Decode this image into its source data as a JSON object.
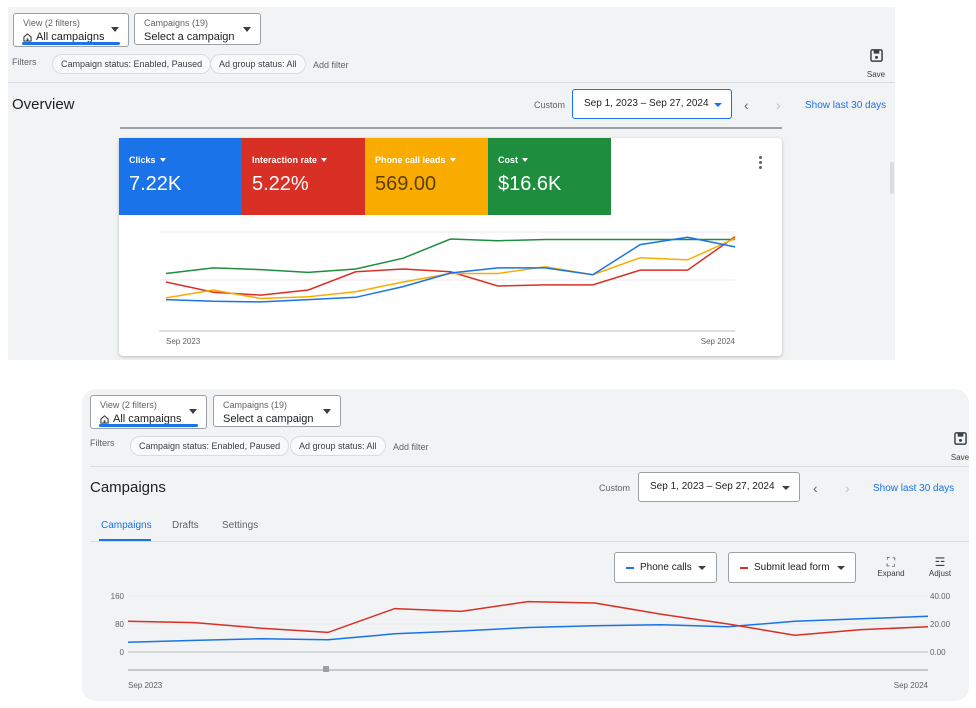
{
  "top": {
    "filters_view": {
      "label": "View (2 filters)",
      "value": "All campaigns"
    },
    "campaigns_select": {
      "label": "Campaigns (19)",
      "value": "Select a campaign"
    },
    "filters_label": "Filters",
    "chips": [
      "Campaign status: Enabled, Paused",
      "Ad group status: All"
    ],
    "add_filter": "Add filter",
    "save_label": "Save",
    "title": "Overview",
    "custom_label": "Custom",
    "date_range": "Sep 1, 2023 – Sep 27, 2024",
    "show_last": "Show last 30 days",
    "tiles": [
      {
        "label": "Clicks",
        "value": "7.22K",
        "color": "#1a73e8"
      },
      {
        "label": "Interaction rate",
        "value": "5.22%",
        "color": "#d93025"
      },
      {
        "label": "Phone call leads",
        "value": "569.00",
        "color": "#f9ab00"
      },
      {
        "label": "Cost",
        "value": "$16.6K",
        "color": "#1e8e3e"
      }
    ],
    "chart_data": {
      "type": "line",
      "x_labels": [
        "Sep 2023",
        "Sep 2024"
      ],
      "series": [
        {
          "color": "#1e8e3e",
          "values": [
            32,
            42,
            39,
            34,
            40,
            59,
            93,
            90,
            92,
            92,
            92,
            92,
            92
          ]
        },
        {
          "color": "#d93025",
          "values": [
            17,
            -1,
            -6,
            3,
            35,
            40,
            35,
            10,
            12,
            12,
            38,
            38,
            97
          ]
        },
        {
          "color": "#f9ab00",
          "values": [
            -11,
            3,
            -12,
            -9,
            0,
            17,
            32,
            32,
            44,
            30,
            60,
            56,
            94
          ]
        },
        {
          "color": "#1a73e8",
          "values": [
            -14,
            -17,
            -18,
            -14,
            -10,
            9,
            33,
            42,
            42,
            30,
            83,
            96,
            79
          ]
        }
      ]
    }
  },
  "bottom": {
    "filters_view": {
      "label": "View (2 filters)",
      "value": "All campaigns"
    },
    "campaigns_select": {
      "label": "Campaigns (19)",
      "value": "Select a campaign"
    },
    "filters_label": "Filters",
    "chips": [
      "Campaign status: Enabled, Paused",
      "Ad group status: All"
    ],
    "add_filter": "Add filter",
    "save_label": "Save",
    "title": "Campaigns",
    "custom_label": "Custom",
    "date_range": "Sep 1, 2023 – Sep 27, 2024",
    "show_last": "Show last 30 days",
    "tabs": [
      "Campaigns",
      "Drafts",
      "Settings"
    ],
    "metric1": {
      "label": "Phone calls",
      "color": "#1a73e8"
    },
    "metric2": {
      "label": "Submit lead form",
      "color": "#d93025"
    },
    "expand_label": "Expand",
    "adjust_label": "Adjust",
    "chart_data": {
      "type": "line",
      "x_labels": [
        "Sep 2023",
        "Sep 2024"
      ],
      "left_axis": {
        "ticks": [
          "160",
          "80",
          "0"
        ],
        "range": [
          0,
          160
        ]
      },
      "right_axis": {
        "ticks": [
          "40.00",
          "20.00",
          "0.00"
        ],
        "range": [
          0,
          40
        ]
      },
      "series": [
        {
          "name": "Phone calls",
          "axis": "left",
          "color": "#1a73e8",
          "values": [
            28,
            33,
            38,
            35,
            52,
            60,
            70,
            75,
            78,
            72,
            88,
            95,
            102
          ]
        },
        {
          "name": "Submit lead form",
          "axis": "right",
          "color": "#d93025",
          "values": [
            22,
            21,
            17,
            14,
            31,
            29,
            36,
            35,
            27,
            20,
            12,
            16,
            18
          ]
        }
      ]
    }
  }
}
